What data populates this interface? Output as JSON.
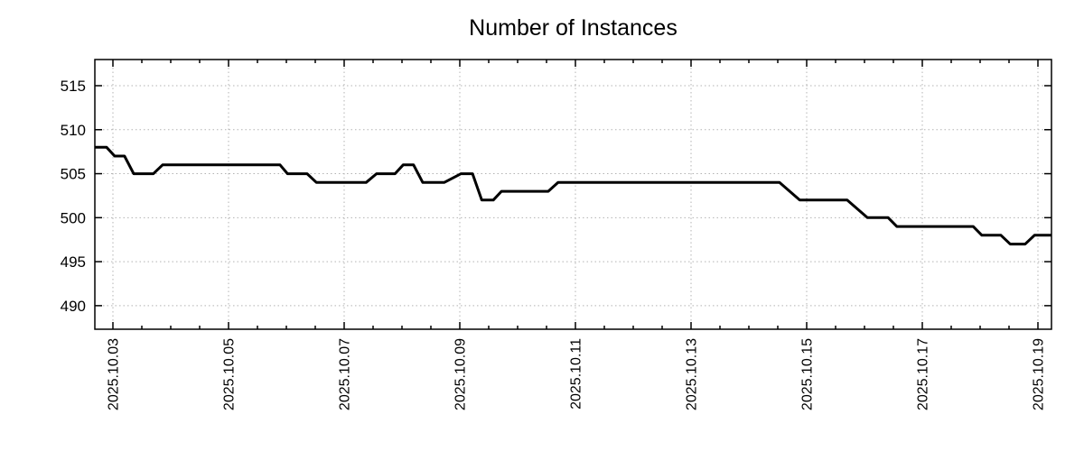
{
  "title": "Number of Instances",
  "colors": {
    "background": "#ffffff",
    "line": "#000000",
    "grid": "#b3b3b3",
    "axis": "#000000",
    "title_text": "#1f1f1f",
    "tick_label_text": "#000000"
  },
  "chart_data": {
    "type": "line",
    "title": "Number of Instances",
    "xlabel": "",
    "ylabel": "",
    "grid": true,
    "legend": false,
    "x_major_tick_labels": [
      "2025.10.03",
      "2025.10.05",
      "2025.10.07",
      "2025.10.09",
      "2025.10.11",
      "2025.10.13",
      "2025.10.15",
      "2025.10.17",
      "2025.10.19"
    ],
    "x_major_tick_days": [
      0,
      2,
      4,
      6,
      8,
      10,
      12,
      14,
      16
    ],
    "x_minor_tick_interval_days": 0.5,
    "x_range_days": [
      -0.31,
      16.23
    ],
    "y_ticks": [
      490,
      495,
      500,
      505,
      510,
      515
    ],
    "y_tick_labels": [
      "490",
      "495",
      "500",
      "505",
      "510",
      "515"
    ],
    "y_range": [
      487.3,
      518.0
    ],
    "series": [
      {
        "name": "Number of Instances",
        "color": "#000000",
        "points_t_days_value": [
          [
            -0.31,
            508
          ],
          [
            -0.11,
            508
          ],
          [
            0.03,
            507
          ],
          [
            0.2,
            507
          ],
          [
            0.36,
            505
          ],
          [
            0.7,
            505
          ],
          [
            0.86,
            506
          ],
          [
            2.89,
            506
          ],
          [
            3.02,
            505
          ],
          [
            3.36,
            505
          ],
          [
            3.52,
            504
          ],
          [
            4.38,
            504
          ],
          [
            4.56,
            505
          ],
          [
            4.88,
            505
          ],
          [
            5.02,
            506
          ],
          [
            5.2,
            506
          ],
          [
            5.36,
            504
          ],
          [
            5.73,
            504
          ],
          [
            6.02,
            505
          ],
          [
            6.22,
            505
          ],
          [
            6.38,
            502
          ],
          [
            6.58,
            502
          ],
          [
            6.72,
            503
          ],
          [
            7.53,
            503
          ],
          [
            7.7,
            504
          ],
          [
            11.53,
            504
          ],
          [
            11.88,
            502
          ],
          [
            12.7,
            502
          ],
          [
            13.05,
            500
          ],
          [
            13.41,
            500
          ],
          [
            13.56,
            499
          ],
          [
            14.88,
            499
          ],
          [
            15.03,
            498
          ],
          [
            15.36,
            498
          ],
          [
            15.52,
            497
          ],
          [
            15.78,
            497
          ],
          [
            15.94,
            498
          ],
          [
            16.23,
            498
          ]
        ]
      }
    ]
  }
}
